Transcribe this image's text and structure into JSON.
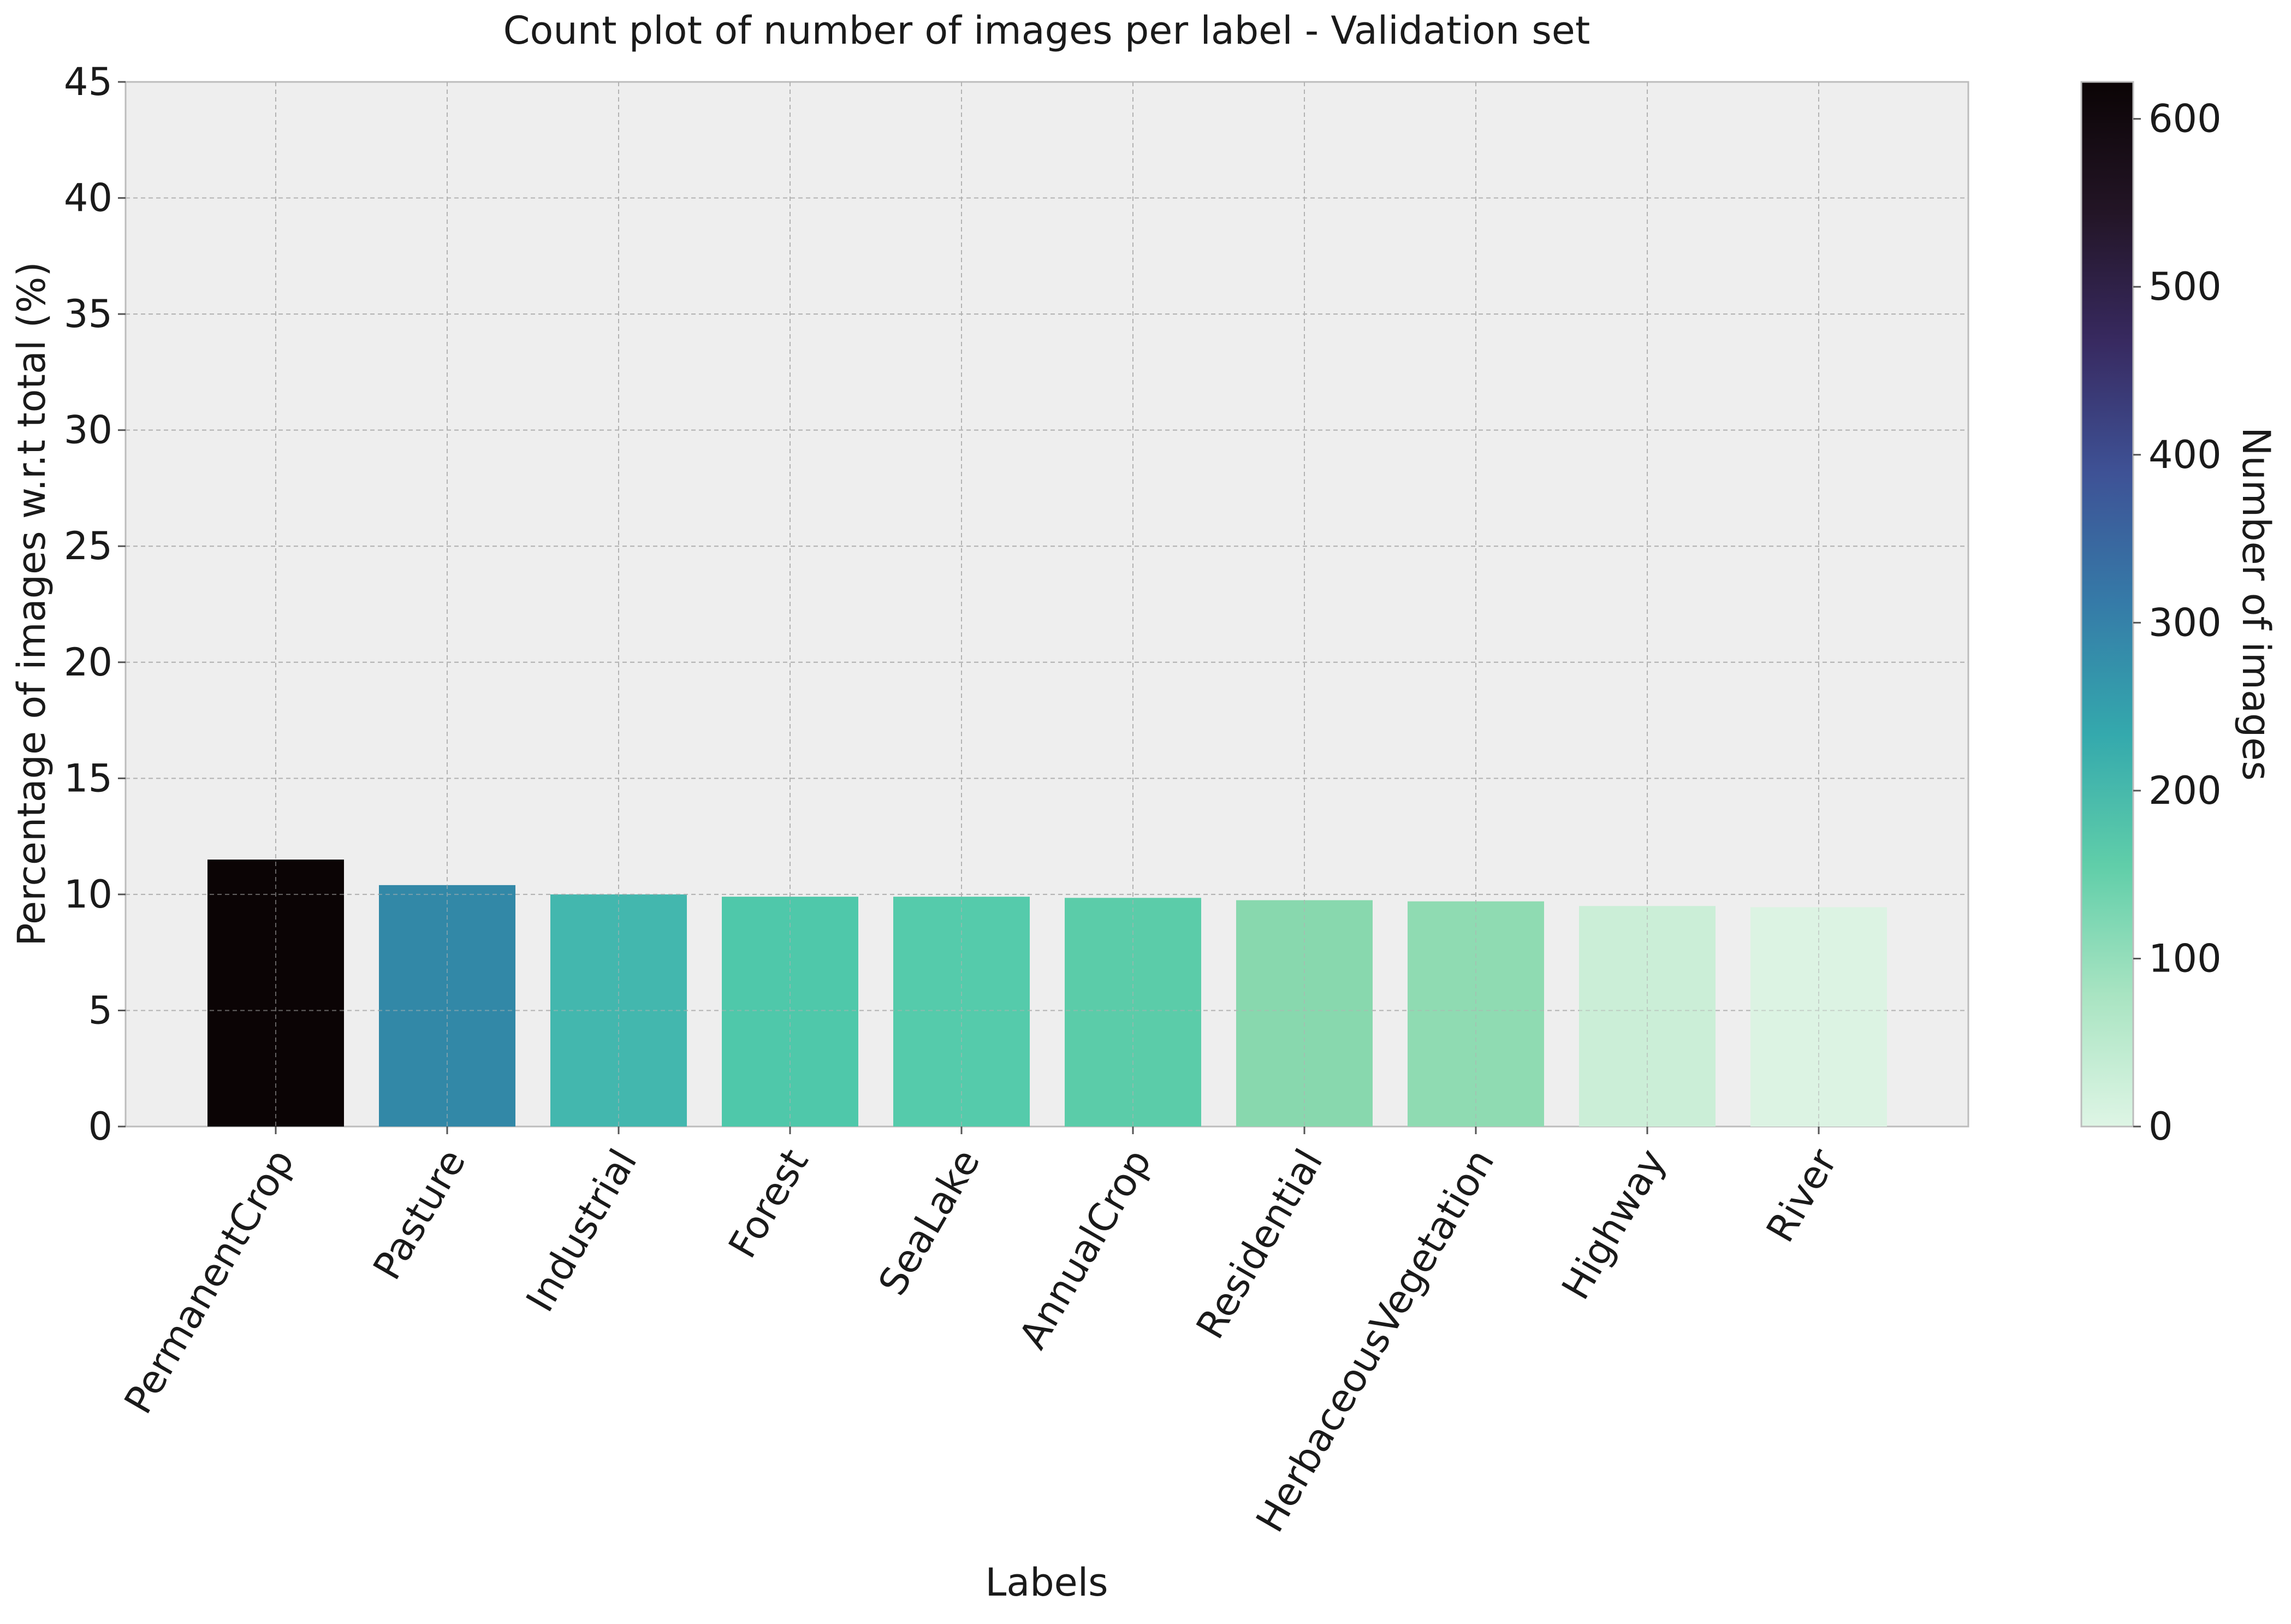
{
  "chart_data": {
    "type": "bar",
    "title": "Count plot of number of images per label - Validation set",
    "xlabel": "Labels",
    "ylabel": "Percentage of images w.r.t total (%)",
    "ylim": [
      0,
      45
    ],
    "yticks": [
      0,
      5,
      10,
      15,
      20,
      25,
      30,
      35,
      40,
      45
    ],
    "grid": true,
    "categories": [
      "PermanentCrop",
      "Pasture",
      "Industrial",
      "Forest",
      "SeaLake",
      "AnnualCrop",
      "Residential",
      "HerbaceousVegetation",
      "Highway",
      "River"
    ],
    "values": [
      11.5,
      10.4,
      10.0,
      9.9,
      9.9,
      9.85,
      9.75,
      9.7,
      9.5,
      9.45
    ],
    "bar_colors": [
      "#0b0405",
      "#3288a7",
      "#43b7ae",
      "#4fc8aa",
      "#55cbab",
      "#5bcca9",
      "#88d8ae",
      "#8fdbb2",
      "#cbeed7",
      "#dcf3e3"
    ],
    "colorbar": {
      "label": "Number of images",
      "range": [
        0,
        622
      ],
      "ticks": [
        0,
        100,
        200,
        300,
        400,
        500,
        600
      ],
      "colormap_stops": [
        "#def5e5",
        "#a9e4c2",
        "#60cea9",
        "#34a9ad",
        "#357ba8",
        "#3e5296",
        "#382a61",
        "#231526",
        "#0b0405"
      ]
    }
  }
}
